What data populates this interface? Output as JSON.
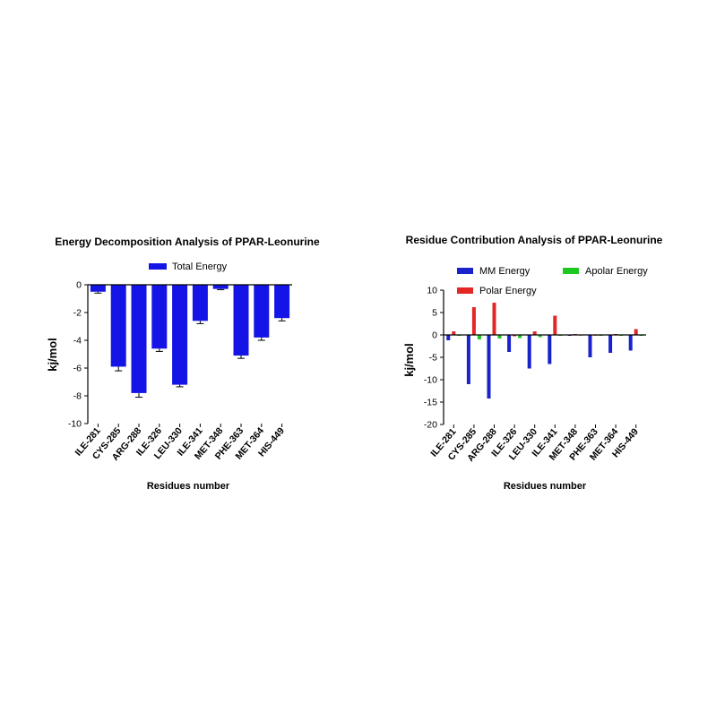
{
  "colors": {
    "total": "#1414e6",
    "mm": "#1a22cc",
    "polar": "#e32626",
    "apolar": "#1ec81e",
    "axis": "#000000"
  },
  "chart_data": [
    {
      "type": "bar",
      "title": "Energy Decomposition Analysis of  PPAR-Leonurine",
      "xlabel": "Residues number",
      "ylabel": "kj/mol",
      "ylim": [
        -10,
        0
      ],
      "yticks": [
        "0",
        "-2",
        "-4",
        "-6",
        "-8",
        "-10"
      ],
      "legend_position": "top-center",
      "categories": [
        "ILE-281",
        "CYS-285",
        "ARG-288",
        "ILE-326",
        "LEU-330",
        "ILE-341",
        "MET-348",
        "PHE-363",
        "MET-364",
        "HIS-449"
      ],
      "series": [
        {
          "name": "Total Energy",
          "values": [
            -0.5,
            -5.9,
            -7.8,
            -4.6,
            -7.2,
            -2.6,
            -0.3,
            -5.1,
            -3.8,
            -2.4
          ],
          "errors": [
            0.1,
            0.3,
            0.3,
            0.2,
            0.15,
            0.2,
            0.05,
            0.2,
            0.2,
            0.2
          ]
        }
      ]
    },
    {
      "type": "bar",
      "title": "Residue Contribution Analysis of PPAR-Leonurine",
      "xlabel": "Residues number",
      "ylabel": "kj/mol",
      "ylim": [
        -20,
        10
      ],
      "yticks": [
        "10",
        "5",
        "0",
        "-5",
        "-10",
        "-15",
        "-20"
      ],
      "legend_position": "top",
      "categories": [
        "ILE-281",
        "CYS-285",
        "ARG-288",
        "ILE-326",
        "LEU-330",
        "ILE-341",
        "MET-348",
        "PHE-363",
        "MET-364",
        "HIS-449"
      ],
      "series": [
        {
          "name": "MM Energy",
          "values": [
            -1.2,
            -11.0,
            -14.2,
            -3.8,
            -7.5,
            -6.5,
            -0.2,
            -5.0,
            -4.0,
            -3.5
          ]
        },
        {
          "name": "Polar Energy",
          "values": [
            0.8,
            6.2,
            7.2,
            -0.3,
            0.8,
            4.3,
            0.2,
            -0.1,
            0.2,
            1.3
          ]
        },
        {
          "name": "Apolar Energy",
          "values": [
            -0.2,
            -1.0,
            -0.8,
            -0.7,
            -0.5,
            -0.2,
            -0.1,
            -0.2,
            -0.2,
            -0.2
          ]
        }
      ]
    }
  ]
}
